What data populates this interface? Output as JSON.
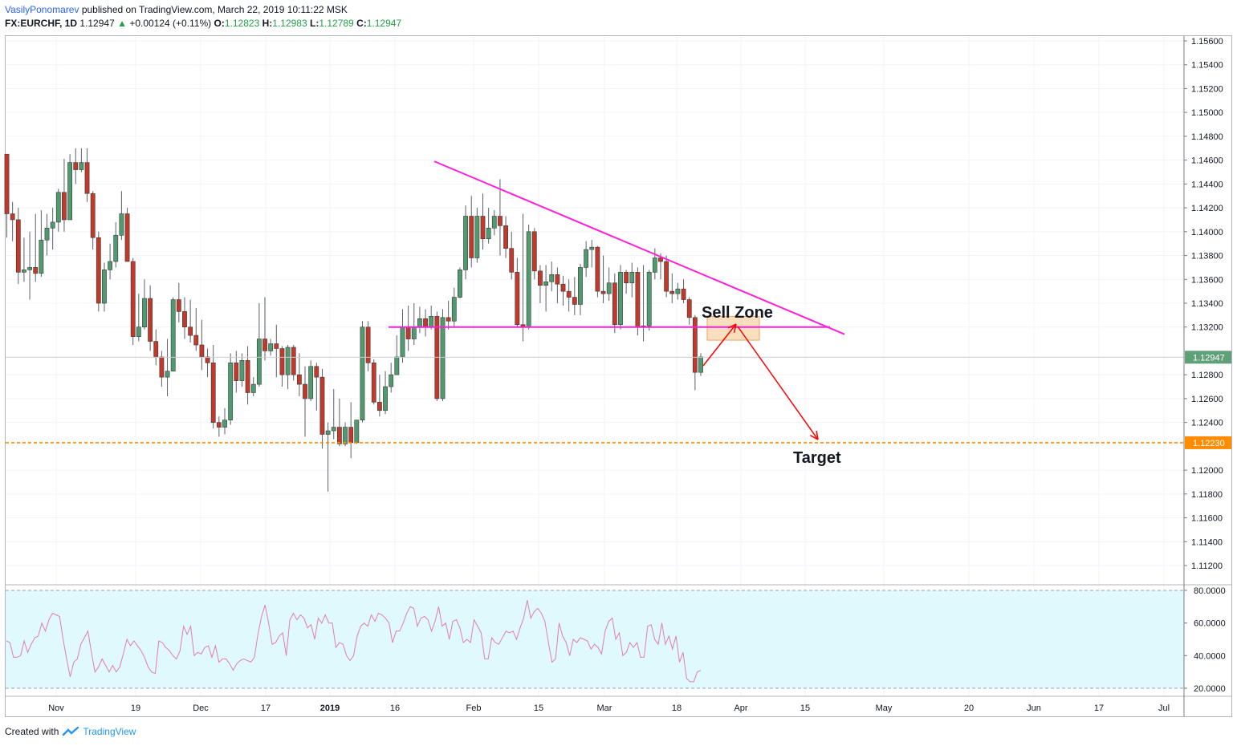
{
  "header": {
    "author": "VasilyPonomarev",
    "published": "published on TradingView.com, March 22, 2019 10:11:22 MSK",
    "symbol": "FX:EURCHF, 1D",
    "last": "1.12947",
    "change": "+0.00124 (+0.11%)",
    "o_label": "O:",
    "o": "1.12823",
    "h_label": "H:",
    "h": "1.12983",
    "l_label": "L:",
    "l": "1.12789",
    "c_label": "C:",
    "c": "1.12947"
  },
  "footer": {
    "created_with": "Created with",
    "brand": "TradingView"
  },
  "colors": {
    "up": "#4f9a6e",
    "down": "#c0392b",
    "trend": "#ff1fd9",
    "target": "#ff8c00",
    "arrow": "#ff0000",
    "zone": "#f5c48a",
    "rsi_band": "#e0f9fd",
    "rsi_line": "#e27cb1",
    "price_badge": "#5fa079"
  },
  "chart_data": [
    {
      "type": "candlestick",
      "symbol": "FX:EURCHF",
      "timeframe": "1D",
      "price_axis_ticks": [
        "1.15600",
        "1.15400",
        "1.15200",
        "1.15000",
        "1.14800",
        "1.14600",
        "1.14400",
        "1.14200",
        "1.14000",
        "1.13800",
        "1.13600",
        "1.13400",
        "1.13200",
        "1.12800",
        "1.12600",
        "1.12400",
        "1.12000",
        "1.11800",
        "1.11600",
        "1.11400",
        "1.11200"
      ],
      "time_axis_ticks": [
        "Nov",
        "19",
        "Dec",
        "17",
        "2019",
        "16",
        "Feb",
        "15",
        "Mar",
        "18",
        "Apr",
        "15",
        "May",
        "20",
        "Jun",
        "17",
        "Jul"
      ],
      "ylim": [
        1.111,
        1.1568
      ],
      "last_price_label": "1.12947",
      "target_price_label": "1.12230",
      "target_price": 1.1223,
      "annotations": {
        "sell_zone": "Sell Zone",
        "target": "Target"
      },
      "sell_zone_range": [
        1.1309,
        1.1329
      ],
      "resistance_level": 1.132,
      "candles": [
        {
          "o": 1.1465,
          "h": 1.1465,
          "c": 1.1415,
          "l": 1.1395
        },
        {
          "o": 1.1415,
          "h": 1.1425,
          "c": 1.141,
          "l": 1.1392
        },
        {
          "o": 1.141,
          "h": 1.142,
          "c": 1.1366,
          "l": 1.1356
        },
        {
          "o": 1.1366,
          "h": 1.1395,
          "c": 1.1368,
          "l": 1.1358
        },
        {
          "o": 1.1368,
          "h": 1.14,
          "c": 1.137,
          "l": 1.1343
        },
        {
          "o": 1.137,
          "h": 1.1415,
          "c": 1.1365,
          "l": 1.1358
        },
        {
          "o": 1.1365,
          "h": 1.1418,
          "c": 1.1393,
          "l": 1.1362
        },
        {
          "o": 1.1393,
          "h": 1.1415,
          "c": 1.1403,
          "l": 1.138
        },
        {
          "o": 1.1403,
          "h": 1.142,
          "c": 1.1408,
          "l": 1.1385
        },
        {
          "o": 1.1408,
          "h": 1.1436,
          "c": 1.1433,
          "l": 1.14
        },
        {
          "o": 1.1433,
          "h": 1.1461,
          "c": 1.141,
          "l": 1.14
        },
        {
          "o": 1.141,
          "h": 1.1465,
          "c": 1.1458,
          "l": 1.141
        },
        {
          "o": 1.1458,
          "h": 1.147,
          "c": 1.1452,
          "l": 1.144
        },
        {
          "o": 1.1452,
          "h": 1.147,
          "c": 1.1458,
          "l": 1.145
        },
        {
          "o": 1.1458,
          "h": 1.147,
          "c": 1.1432,
          "l": 1.1425
        },
        {
          "o": 1.1432,
          "h": 1.1434,
          "c": 1.1395,
          "l": 1.1385
        },
        {
          "o": 1.1395,
          "h": 1.14,
          "c": 1.134,
          "l": 1.1333
        },
        {
          "o": 1.134,
          "h": 1.1374,
          "c": 1.1368,
          "l": 1.1333
        },
        {
          "o": 1.1368,
          "h": 1.139,
          "c": 1.1375,
          "l": 1.136
        },
        {
          "o": 1.1375,
          "h": 1.1408,
          "c": 1.1397,
          "l": 1.137
        },
        {
          "o": 1.1397,
          "h": 1.1434,
          "c": 1.1415,
          "l": 1.1393
        },
        {
          "o": 1.1415,
          "h": 1.142,
          "c": 1.1375,
          "l": 1.1378
        },
        {
          "o": 1.1375,
          "h": 1.1378,
          "c": 1.1312,
          "l": 1.1305
        },
        {
          "o": 1.1312,
          "h": 1.1348,
          "c": 1.132,
          "l": 1.1308
        },
        {
          "o": 1.132,
          "h": 1.136,
          "c": 1.1344,
          "l": 1.1318
        },
        {
          "o": 1.1344,
          "h": 1.1355,
          "c": 1.1308,
          "l": 1.13
        },
        {
          "o": 1.1308,
          "h": 1.1318,
          "c": 1.1295,
          "l": 1.1288
        },
        {
          "o": 1.1295,
          "h": 1.13,
          "c": 1.1278,
          "l": 1.127
        },
        {
          "o": 1.1278,
          "h": 1.131,
          "c": 1.1283,
          "l": 1.1262
        },
        {
          "o": 1.1283,
          "h": 1.1345,
          "c": 1.1343,
          "l": 1.1285
        },
        {
          "o": 1.1343,
          "h": 1.1357,
          "c": 1.1333,
          "l": 1.1324
        },
        {
          "o": 1.1333,
          "h": 1.1345,
          "c": 1.132,
          "l": 1.131
        },
        {
          "o": 1.132,
          "h": 1.1343,
          "c": 1.1313,
          "l": 1.1307
        },
        {
          "o": 1.1313,
          "h": 1.1336,
          "c": 1.1305,
          "l": 1.13
        },
        {
          "o": 1.1305,
          "h": 1.1326,
          "c": 1.1295,
          "l": 1.1284
        },
        {
          "o": 1.1295,
          "h": 1.1302,
          "c": 1.129,
          "l": 1.1278
        },
        {
          "o": 1.129,
          "h": 1.1305,
          "c": 1.124,
          "l": 1.1235
        },
        {
          "o": 1.124,
          "h": 1.1245,
          "c": 1.1236,
          "l": 1.1228
        },
        {
          "o": 1.1236,
          "h": 1.1252,
          "c": 1.1242,
          "l": 1.123
        },
        {
          "o": 1.1242,
          "h": 1.1298,
          "c": 1.129,
          "l": 1.1238
        },
        {
          "o": 1.129,
          "h": 1.13,
          "c": 1.1275,
          "l": 1.1265
        },
        {
          "o": 1.1275,
          "h": 1.1298,
          "c": 1.1292,
          "l": 1.127
        },
        {
          "o": 1.1292,
          "h": 1.1304,
          "c": 1.1265,
          "l": 1.1255
        },
        {
          "o": 1.1265,
          "h": 1.1278,
          "c": 1.1272,
          "l": 1.1262
        },
        {
          "o": 1.1272,
          "h": 1.134,
          "c": 1.131,
          "l": 1.127
        },
        {
          "o": 1.131,
          "h": 1.1345,
          "c": 1.13,
          "l": 1.1292
        },
        {
          "o": 1.13,
          "h": 1.131,
          "c": 1.1306,
          "l": 1.1296
        },
        {
          "o": 1.1306,
          "h": 1.1322,
          "c": 1.1302,
          "l": 1.1278
        },
        {
          "o": 1.1302,
          "h": 1.1304,
          "c": 1.128,
          "l": 1.127
        },
        {
          "o": 1.128,
          "h": 1.1305,
          "c": 1.1303,
          "l": 1.1268
        },
        {
          "o": 1.1303,
          "h": 1.1305,
          "c": 1.128,
          "l": 1.1275
        },
        {
          "o": 1.128,
          "h": 1.1298,
          "c": 1.1272,
          "l": 1.1262
        },
        {
          "o": 1.1272,
          "h": 1.1287,
          "c": 1.126,
          "l": 1.1228
        },
        {
          "o": 1.126,
          "h": 1.1292,
          "c": 1.1287,
          "l": 1.1258
        },
        {
          "o": 1.1287,
          "h": 1.129,
          "c": 1.1278,
          "l": 1.125
        },
        {
          "o": 1.1278,
          "h": 1.1285,
          "c": 1.123,
          "l": 1.1218
        },
        {
          "o": 1.123,
          "h": 1.124,
          "c": 1.1233,
          "l": 1.1182
        },
        {
          "o": 1.1233,
          "h": 1.1268,
          "c": 1.1236,
          "l": 1.1226
        },
        {
          "o": 1.1236,
          "h": 1.126,
          "c": 1.1222,
          "l": 1.122
        },
        {
          "o": 1.1222,
          "h": 1.124,
          "c": 1.1236,
          "l": 1.122
        },
        {
          "o": 1.1236,
          "h": 1.1257,
          "c": 1.1223,
          "l": 1.121
        },
        {
          "o": 1.1223,
          "h": 1.124,
          "c": 1.1242,
          "l": 1.1222
        },
        {
          "o": 1.1242,
          "h": 1.1325,
          "c": 1.132,
          "l": 1.124
        },
        {
          "o": 1.132,
          "h": 1.1325,
          "c": 1.129,
          "l": 1.1283
        },
        {
          "o": 1.129,
          "h": 1.1293,
          "c": 1.1257,
          "l": 1.1255
        },
        {
          "o": 1.1257,
          "h": 1.128,
          "c": 1.125,
          "l": 1.1245
        },
        {
          "o": 1.125,
          "h": 1.1283,
          "c": 1.127,
          "l": 1.1247
        },
        {
          "o": 1.127,
          "h": 1.129,
          "c": 1.128,
          "l": 1.1265
        },
        {
          "o": 1.128,
          "h": 1.1313,
          "c": 1.1295,
          "l": 1.128
        },
        {
          "o": 1.1295,
          "h": 1.1335,
          "c": 1.132,
          "l": 1.129
        },
        {
          "o": 1.132,
          "h": 1.1338,
          "c": 1.131,
          "l": 1.13
        },
        {
          "o": 1.131,
          "h": 1.134,
          "c": 1.132,
          "l": 1.1305
        },
        {
          "o": 1.132,
          "h": 1.1337,
          "c": 1.1327,
          "l": 1.1315
        },
        {
          "o": 1.1327,
          "h": 1.1335,
          "c": 1.132,
          "l": 1.1312
        },
        {
          "o": 1.132,
          "h": 1.1338,
          "c": 1.1329,
          "l": 1.1318
        },
        {
          "o": 1.1329,
          "h": 1.1333,
          "c": 1.126,
          "l": 1.1258
        },
        {
          "o": 1.126,
          "h": 1.1335,
          "c": 1.1328,
          "l": 1.1258
        },
        {
          "o": 1.1328,
          "h": 1.1342,
          "c": 1.1325,
          "l": 1.1318
        },
        {
          "o": 1.1325,
          "h": 1.1353,
          "c": 1.1345,
          "l": 1.132
        },
        {
          "o": 1.1345,
          "h": 1.137,
          "c": 1.1368,
          "l": 1.1344
        },
        {
          "o": 1.1368,
          "h": 1.1422,
          "c": 1.1413,
          "l": 1.136
        },
        {
          "o": 1.1413,
          "h": 1.143,
          "c": 1.1378,
          "l": 1.137
        },
        {
          "o": 1.1378,
          "h": 1.142,
          "c": 1.1413,
          "l": 1.1374
        },
        {
          "o": 1.1413,
          "h": 1.1432,
          "c": 1.1394,
          "l": 1.1385
        },
        {
          "o": 1.1394,
          "h": 1.142,
          "c": 1.1403,
          "l": 1.139
        },
        {
          "o": 1.1403,
          "h": 1.1418,
          "c": 1.1413,
          "l": 1.1397
        },
        {
          "o": 1.1413,
          "h": 1.1444,
          "c": 1.1405,
          "l": 1.138
        },
        {
          "o": 1.1405,
          "h": 1.1413,
          "c": 1.1386,
          "l": 1.1378
        },
        {
          "o": 1.1386,
          "h": 1.14,
          "c": 1.1366,
          "l": 1.136
        },
        {
          "o": 1.1366,
          "h": 1.1378,
          "c": 1.1322,
          "l": 1.132
        },
        {
          "o": 1.1322,
          "h": 1.1415,
          "c": 1.132,
          "l": 1.1308
        },
        {
          "o": 1.132,
          "h": 1.1406,
          "c": 1.14,
          "l": 1.1318
        },
        {
          "o": 1.14,
          "h": 1.1403,
          "c": 1.1367,
          "l": 1.136
        },
        {
          "o": 1.1367,
          "h": 1.1372,
          "c": 1.1355,
          "l": 1.134
        },
        {
          "o": 1.1355,
          "h": 1.1372,
          "c": 1.1358,
          "l": 1.1333
        },
        {
          "o": 1.1358,
          "h": 1.1375,
          "c": 1.1364,
          "l": 1.135
        },
        {
          "o": 1.1364,
          "h": 1.137,
          "c": 1.1356,
          "l": 1.134
        },
        {
          "o": 1.1356,
          "h": 1.1363,
          "c": 1.135,
          "l": 1.1338
        },
        {
          "o": 1.135,
          "h": 1.136,
          "c": 1.1345,
          "l": 1.1333
        },
        {
          "o": 1.1345,
          "h": 1.1362,
          "c": 1.1339,
          "l": 1.133
        },
        {
          "o": 1.1339,
          "h": 1.1373,
          "c": 1.137,
          "l": 1.133
        },
        {
          "o": 1.137,
          "h": 1.1392,
          "c": 1.1385,
          "l": 1.1362
        },
        {
          "o": 1.1385,
          "h": 1.1393,
          "c": 1.1387,
          "l": 1.137
        },
        {
          "o": 1.1387,
          "h": 1.1388,
          "c": 1.135,
          "l": 1.1345
        },
        {
          "o": 1.135,
          "h": 1.138,
          "c": 1.1348,
          "l": 1.134
        },
        {
          "o": 1.1348,
          "h": 1.137,
          "c": 1.1357,
          "l": 1.1342
        },
        {
          "o": 1.1357,
          "h": 1.1365,
          "c": 1.1322,
          "l": 1.1315
        },
        {
          "o": 1.1322,
          "h": 1.1372,
          "c": 1.1366,
          "l": 1.1318
        },
        {
          "o": 1.1366,
          "h": 1.1368,
          "c": 1.1357,
          "l": 1.1348
        },
        {
          "o": 1.1357,
          "h": 1.1374,
          "c": 1.1366,
          "l": 1.1345
        },
        {
          "o": 1.1366,
          "h": 1.137,
          "c": 1.132,
          "l": 1.1313
        },
        {
          "o": 1.132,
          "h": 1.1372,
          "c": 1.1321,
          "l": 1.1308
        },
        {
          "o": 1.1321,
          "h": 1.1368,
          "c": 1.1366,
          "l": 1.1317
        },
        {
          "o": 1.1366,
          "h": 1.1386,
          "c": 1.1378,
          "l": 1.136
        },
        {
          "o": 1.1378,
          "h": 1.1382,
          "c": 1.1375,
          "l": 1.136
        },
        {
          "o": 1.1375,
          "h": 1.138,
          "c": 1.135,
          "l": 1.1345
        },
        {
          "o": 1.135,
          "h": 1.1365,
          "c": 1.1348,
          "l": 1.134
        },
        {
          "o": 1.1348,
          "h": 1.1357,
          "c": 1.1352,
          "l": 1.1343
        },
        {
          "o": 1.1352,
          "h": 1.136,
          "c": 1.1343,
          "l": 1.134
        },
        {
          "o": 1.1343,
          "h": 1.1345,
          "c": 1.1328,
          "l": 1.1322
        },
        {
          "o": 1.1328,
          "h": 1.133,
          "c": 1.1282,
          "l": 1.1267
        },
        {
          "o": 1.1282,
          "h": 1.1298,
          "c": 1.1295,
          "l": 1.1279
        }
      ]
    },
    {
      "type": "line",
      "indicator": "RSI",
      "axis_ticks": [
        "80.0000",
        "60.0000",
        "40.0000",
        "20.0000"
      ],
      "ylim": [
        18,
        82
      ],
      "band": [
        20,
        80
      ],
      "values": [
        49,
        48,
        39,
        39,
        40,
        49,
        42,
        47,
        51,
        52,
        60,
        55,
        62,
        66,
        65,
        64,
        50,
        38,
        27,
        36,
        38,
        47,
        51,
        55,
        42,
        30,
        33,
        38,
        34,
        30,
        34,
        30,
        33,
        41,
        50,
        46,
        49,
        46,
        43,
        39,
        33,
        30,
        29,
        49,
        48,
        45,
        43,
        40,
        38,
        43,
        58,
        53,
        58,
        40,
        42,
        41,
        45,
        46,
        39,
        46,
        36,
        38,
        38,
        35,
        31,
        35,
        37,
        38,
        37,
        36,
        39,
        53,
        64,
        71,
        60,
        47,
        48,
        52,
        54,
        40,
        62,
        66,
        62,
        65,
        63,
        57,
        59,
        50,
        63,
        60,
        65,
        60,
        60,
        45,
        48,
        47,
        40,
        37,
        40,
        52,
        58,
        60,
        58,
        65,
        61,
        66,
        65,
        63,
        60,
        48,
        55,
        55,
        60,
        66,
        70,
        69,
        58,
        63,
        64,
        62,
        55,
        61,
        70,
        58,
        60,
        50,
        61,
        62,
        57,
        48,
        50,
        48,
        62,
        58,
        54,
        38,
        38,
        51,
        48,
        47,
        51,
        55,
        54,
        55,
        50,
        57,
        63,
        74,
        63,
        67,
        69,
        66,
        61,
        48,
        36,
        38,
        60,
        52,
        48,
        40,
        50,
        48,
        51,
        50,
        49,
        44,
        47,
        45,
        41,
        55,
        61,
        63,
        50,
        54,
        40,
        42,
        48,
        45,
        48,
        39,
        39,
        58,
        59,
        50,
        47,
        60,
        47,
        52,
        44,
        52,
        36,
        42,
        26,
        24,
        24,
        30,
        31
      ]
    }
  ]
}
